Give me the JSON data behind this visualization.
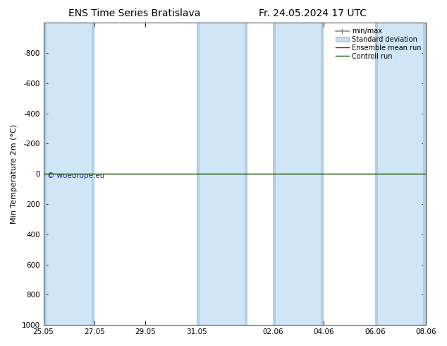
{
  "title_left": "ENS Time Series Bratislava",
  "title_right": "Fr. 24.05.2024 17 UTC",
  "ylabel": "Min Temperature 2m (°C)",
  "watermark": "© woeurope.eu",
  "ylim_bottom": -1000,
  "ylim_top": 1000,
  "yticks": [
    -800,
    -600,
    -400,
    -200,
    0,
    200,
    400,
    600,
    800,
    1000
  ],
  "total_days": 15,
  "xtick_positions": [
    0,
    2,
    4,
    6,
    9,
    11,
    13,
    15
  ],
  "xtick_labels": [
    "25.05",
    "27.05",
    "29.05",
    "31.05",
    "02.06",
    "04.06",
    "06.06",
    "08.06"
  ],
  "shaded_bands": [
    [
      0,
      2
    ],
    [
      6,
      8
    ],
    [
      9,
      11
    ],
    [
      13,
      15
    ]
  ],
  "band_color": "#d0e5f5",
  "band_edge_color": "#b0cfe8",
  "control_run_y": 0,
  "control_run_color": "#006600",
  "ensemble_mean_color": "#cc0000",
  "minmax_line_color": "#888888",
  "stddev_fill_color": "#c8dced",
  "legend_entries": [
    "min/max",
    "Standard deviation",
    "Ensemble mean run",
    "Controll run"
  ],
  "legend_colors_line": [
    "#888888",
    "#c0d4e8",
    "#cc0000",
    "#006600"
  ],
  "background_color": "#ffffff",
  "plot_bg_color": "#ffffff",
  "title_fontsize": 10,
  "axis_fontsize": 8,
  "tick_fontsize": 7.5,
  "legend_fontsize": 7
}
